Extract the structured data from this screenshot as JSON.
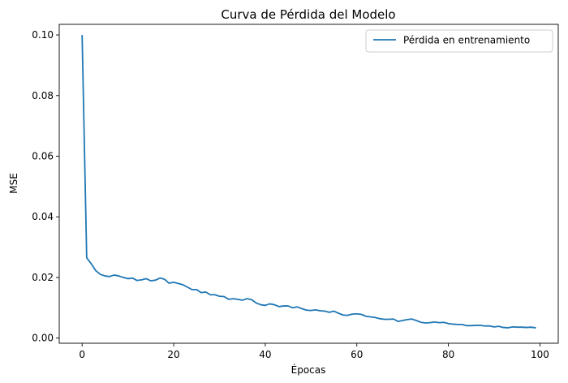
{
  "chart_data": {
    "type": "line",
    "title": "Curva de Pérdida del Modelo",
    "xlabel": "Épocas",
    "ylabel": "MSE",
    "xlim": [
      -5,
      104
    ],
    "ylim": [
      -0.0017,
      0.1035
    ],
    "xticks": [
      0,
      20,
      40,
      60,
      80,
      100
    ],
    "xtick_labels": [
      "0",
      "20",
      "40",
      "60",
      "80",
      "100"
    ],
    "yticks": [
      0.0,
      0.02,
      0.04,
      0.06,
      0.08,
      0.1
    ],
    "ytick_labels": [
      "0.00",
      "0.02",
      "0.04",
      "0.06",
      "0.08",
      "0.10"
    ],
    "grid": false,
    "legend_position": "top-right",
    "colors": {
      "series": "#1f77b4",
      "axes": "#000000",
      "legend_border": "#cccccc"
    },
    "series": [
      {
        "name": "Pérdida en entrenamiento",
        "x": [
          0,
          1,
          2,
          3,
          4,
          5,
          6,
          7,
          8,
          9,
          10,
          11,
          12,
          13,
          14,
          15,
          16,
          17,
          18,
          19,
          20,
          21,
          22,
          23,
          24,
          25,
          26,
          27,
          28,
          29,
          30,
          31,
          32,
          33,
          34,
          35,
          36,
          37,
          38,
          39,
          40,
          41,
          42,
          43,
          44,
          45,
          46,
          47,
          48,
          49,
          50,
          51,
          52,
          53,
          54,
          55,
          56,
          57,
          58,
          59,
          60,
          61,
          62,
          63,
          64,
          65,
          66,
          67,
          68,
          69,
          70,
          71,
          72,
          73,
          74,
          75,
          76,
          77,
          78,
          79,
          80,
          81,
          82,
          83,
          84,
          85,
          86,
          87,
          88,
          89,
          90,
          91,
          92,
          93,
          94,
          95,
          96,
          97,
          98,
          99
        ],
        "values": [
          0.0998,
          0.0265,
          0.0245,
          0.0222,
          0.021,
          0.0205,
          0.0203,
          0.0208,
          0.0205,
          0.02,
          0.0196,
          0.0198,
          0.019,
          0.0192,
          0.0196,
          0.0189,
          0.0191,
          0.0198,
          0.0194,
          0.0181,
          0.0184,
          0.018,
          0.0176,
          0.0168,
          0.016,
          0.016,
          0.015,
          0.0152,
          0.0143,
          0.0143,
          0.0138,
          0.0137,
          0.0128,
          0.013,
          0.0128,
          0.0125,
          0.013,
          0.0127,
          0.0116,
          0.011,
          0.0108,
          0.0113,
          0.011,
          0.0104,
          0.0106,
          0.0106,
          0.01,
          0.0103,
          0.0097,
          0.0092,
          0.0091,
          0.0093,
          0.009,
          0.0089,
          0.0085,
          0.0089,
          0.0082,
          0.0076,
          0.0075,
          0.0079,
          0.008,
          0.0078,
          0.0072,
          0.007,
          0.0068,
          0.0064,
          0.0062,
          0.0062,
          0.0063,
          0.0055,
          0.0058,
          0.0061,
          0.0063,
          0.0058,
          0.0052,
          0.005,
          0.0051,
          0.0053,
          0.0051,
          0.0052,
          0.0048,
          0.0046,
          0.0045,
          0.0045,
          0.0041,
          0.0041,
          0.0042,
          0.0042,
          0.004,
          0.004,
          0.0037,
          0.0039,
          0.0035,
          0.0034,
          0.0037,
          0.0036,
          0.0036,
          0.0035,
          0.0036,
          0.0034
        ]
      }
    ]
  }
}
